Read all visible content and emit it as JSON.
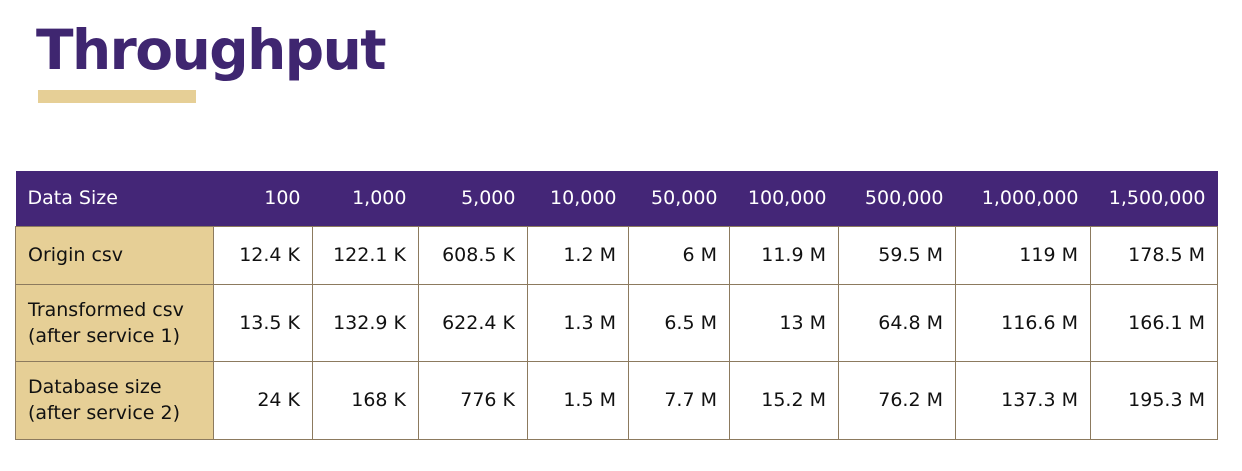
{
  "title": "Throughput",
  "colors": {
    "title": "#3f2670",
    "header_bg": "#442677",
    "accent_gold": "#e6cf96",
    "cell_border": "#8c7a5e"
  },
  "table": {
    "header_label": "Data Size",
    "columns": [
      "100",
      "1,000",
      "5,000",
      "10,000",
      "50,000",
      "100,000",
      "500,000",
      "1,000,000",
      "1,500,000"
    ],
    "rows": [
      {
        "label": "Origin csv",
        "values": [
          "12.4 K",
          "122.1 K",
          "608.5 K",
          "1.2 M",
          "6 M",
          "11.9 M",
          "59.5 M",
          "119 M",
          "178.5 M"
        ]
      },
      {
        "label": "Transformed csv (after service 1)",
        "values": [
          "13.5 K",
          "132.9 K",
          "622.4 K",
          "1.3 M",
          "6.5 M",
          "13 M",
          "64.8 M",
          "116.6 M",
          "166.1 M"
        ]
      },
      {
        "label": "Database size (after service 2)",
        "values": [
          "24 K",
          "168 K",
          "776 K",
          "1.5 M",
          "7.7 M",
          "15.2 M",
          "76.2 M",
          "137.3 M",
          "195.3 M"
        ]
      }
    ]
  }
}
